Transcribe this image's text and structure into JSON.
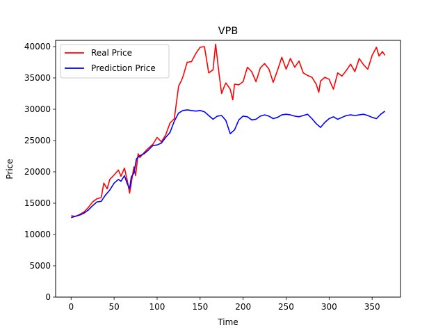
{
  "chart_data": {
    "type": "line",
    "title": "VPB",
    "xlabel": "Time",
    "ylabel": "Price",
    "xlim": [
      -18,
      383
    ],
    "ylim": [
      0,
      41000
    ],
    "xticks": [
      0,
      50,
      100,
      150,
      200,
      250,
      300,
      350
    ],
    "yticks": [
      0,
      5000,
      10000,
      15000,
      20000,
      25000,
      30000,
      35000,
      40000
    ],
    "grid": false,
    "legend_position": "upper left",
    "series": [
      {
        "name": "Real Price",
        "color": "#ff0000",
        "x": [
          0,
          5,
          10,
          15,
          20,
          25,
          30,
          35,
          38,
          42,
          45,
          50,
          55,
          58,
          62,
          65,
          68,
          70,
          73,
          75,
          78,
          80,
          85,
          90,
          95,
          100,
          105,
          110,
          115,
          120,
          125,
          128,
          130,
          135,
          140,
          145,
          150,
          155,
          160,
          165,
          168,
          172,
          175,
          178,
          180,
          185,
          188,
          190,
          195,
          200,
          205,
          210,
          215,
          220,
          225,
          230,
          235,
          240,
          245,
          250,
          255,
          260,
          265,
          270,
          275,
          280,
          285,
          288,
          290,
          295,
          300,
          305,
          310,
          315,
          320,
          325,
          330,
          335,
          340,
          345,
          350,
          355,
          358,
          362,
          365
        ],
        "y": [
          13000,
          12900,
          13200,
          13600,
          14300,
          15200,
          15700,
          15900,
          18200,
          17300,
          18800,
          19500,
          20300,
          19300,
          20600,
          18800,
          16600,
          18200,
          20800,
          19400,
          22900,
          22300,
          23100,
          23800,
          24400,
          25500,
          24800,
          25900,
          27800,
          28500,
          33700,
          34500,
          35200,
          37500,
          37600,
          38900,
          39900,
          40000,
          35800,
          36300,
          40400,
          35700,
          32500,
          33600,
          34200,
          33200,
          31500,
          34000,
          33900,
          34400,
          36700,
          36000,
          34400,
          36600,
          37300,
          36400,
          34300,
          36200,
          38300,
          36400,
          38100,
          36700,
          37700,
          35800,
          35400,
          35100,
          34000,
          32700,
          34500,
          35100,
          34800,
          33200,
          35800,
          35300,
          36200,
          37200,
          36000,
          38100,
          37100,
          36400,
          38600,
          39900,
          38500,
          39200,
          38600
        ]
      },
      {
        "name": "Prediction Price",
        "color": "#0000ff",
        "x": [
          0,
          5,
          10,
          15,
          20,
          25,
          30,
          35,
          40,
          45,
          50,
          55,
          58,
          62,
          65,
          68,
          70,
          73,
          76,
          80,
          85,
          90,
          95,
          100,
          105,
          110,
          115,
          120,
          125,
          130,
          135,
          140,
          145,
          150,
          155,
          160,
          165,
          170,
          175,
          180,
          185,
          190,
          195,
          200,
          205,
          210,
          215,
          220,
          225,
          230,
          235,
          240,
          245,
          250,
          255,
          260,
          265,
          270,
          275,
          280,
          285,
          290,
          295,
          300,
          305,
          310,
          315,
          320,
          325,
          330,
          335,
          340,
          345,
          350,
          355,
          360,
          365
        ],
        "y": [
          12700,
          12900,
          13100,
          13400,
          13900,
          14600,
          15200,
          15300,
          16300,
          17100,
          18200,
          18800,
          18500,
          19400,
          18200,
          17300,
          19200,
          19800,
          22100,
          22600,
          22900,
          23500,
          24200,
          24300,
          24600,
          25500,
          26300,
          28100,
          29400,
          29800,
          29900,
          29800,
          29700,
          29800,
          29600,
          29000,
          28400,
          28900,
          29000,
          28200,
          26100,
          26700,
          28300,
          28900,
          28800,
          28300,
          28400,
          28900,
          29100,
          28900,
          28500,
          28700,
          29100,
          29200,
          29100,
          28900,
          28800,
          29000,
          29200,
          28500,
          27700,
          27100,
          27900,
          28500,
          28800,
          28400,
          28700,
          29000,
          29100,
          29000,
          29100,
          29200,
          29000,
          28700,
          28500,
          29200,
          29700
        ]
      }
    ]
  }
}
